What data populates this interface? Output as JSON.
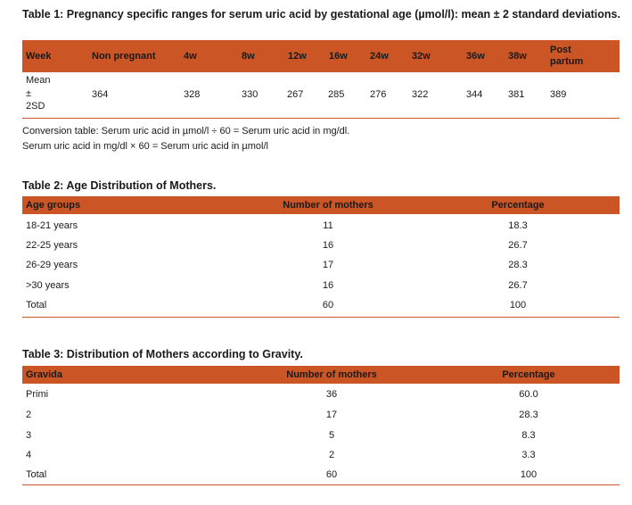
{
  "table1": {
    "title": "Table 1: Pregnancy specific ranges for serum uric acid by gestational age (µmol/l): mean ± 2 standard deviations.",
    "headers": [
      "Week",
      "Non pregnant",
      "4w",
      "8w",
      "12w",
      "16w",
      "24w",
      "32w",
      "36w",
      "38w",
      "Post partum"
    ],
    "row_label": [
      "Mean",
      "±",
      "2SD"
    ],
    "values": [
      "364",
      "328",
      "330",
      "267",
      "285",
      "276",
      "322",
      "344",
      "381",
      "389"
    ],
    "conversion": [
      "Conversion table: Serum uric acid in µmol/l  ÷ 60 = Serum uric acid in mg/dl.",
      "Serum uric acid in mg/dl × 60 = Serum uric acid in µmol/l"
    ]
  },
  "table2": {
    "title": "Table 2: Age Distribution of Mothers.",
    "headers": [
      "Age groups",
      "Number of mothers",
      "Percentage"
    ],
    "rows": [
      [
        "18-21 years",
        "11",
        "18.3"
      ],
      [
        "22-25 years",
        "16",
        "26.7"
      ],
      [
        "26-29 years",
        "17",
        "28.3"
      ],
      [
        ">30 years",
        "16",
        "26.7"
      ],
      [
        "Total",
        "60",
        "100"
      ]
    ]
  },
  "table3": {
    "title": "Table 3: Distribution of Mothers according to Gravity.",
    "headers": [
      "Gravida",
      "Number of mothers",
      "Percentage"
    ],
    "rows": [
      [
        "Primi",
        "36",
        "60.0"
      ],
      [
        "2",
        "17",
        "28.3"
      ],
      [
        "3",
        "5",
        "8.3"
      ],
      [
        "4",
        "2",
        "3.3"
      ],
      [
        "Total",
        "60",
        "100"
      ]
    ]
  },
  "colors": {
    "header_fill": "#cc5526",
    "rule": "#cc5526",
    "text": "#1a1a1a"
  }
}
